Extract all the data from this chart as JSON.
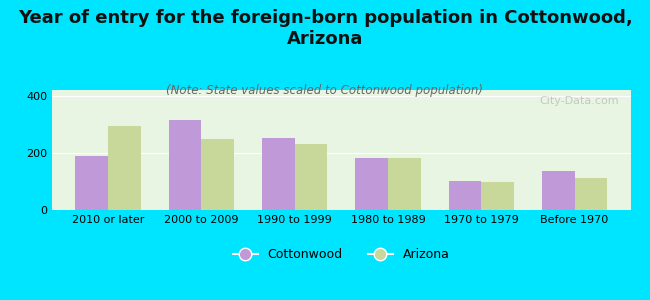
{
  "title": "Year of entry for the foreign-born population in Cottonwood,\nArizona",
  "subtitle": "(Note: State values scaled to Cottonwood population)",
  "categories": [
    "2010 or later",
    "2000 to 2009",
    "1990 to 1999",
    "1980 to 1989",
    "1970 to 1979",
    "Before 1970"
  ],
  "cottonwood_values": [
    188,
    315,
    252,
    183,
    100,
    135
  ],
  "arizona_values": [
    295,
    248,
    232,
    183,
    97,
    112
  ],
  "cottonwood_color": "#bf99d8",
  "arizona_color": "#c8d89a",
  "background_color": "#00e5ff",
  "plot_bg_color": "#e8f5e2",
  "ylim": [
    0,
    420
  ],
  "yticks": [
    0,
    200,
    400
  ],
  "watermark": "City-Data.com",
  "title_fontsize": 13,
  "subtitle_fontsize": 8.5,
  "legend_fontsize": 9,
  "axis_fontsize": 8
}
